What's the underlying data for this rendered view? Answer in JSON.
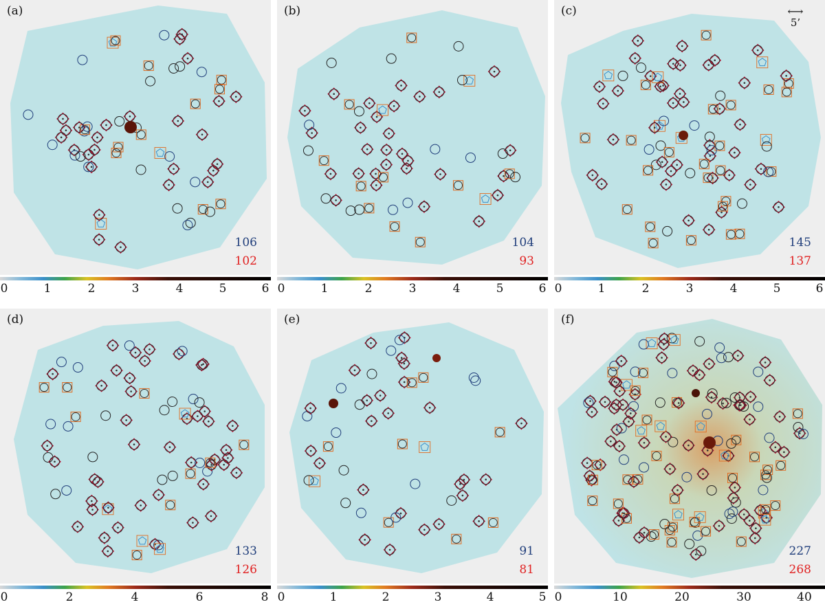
{
  "scale_bar": {
    "label": "5’"
  },
  "panels": [
    {
      "label": "(a)",
      "count_blue": "106",
      "count_red": "102",
      "ticks": [
        "0",
        "1",
        "2",
        "3",
        "4",
        "5",
        "6"
      ]
    },
    {
      "label": "(b)",
      "count_blue": "104",
      "count_red": "93",
      "ticks": [
        "0",
        "1",
        "2",
        "3",
        "4",
        "5",
        "6"
      ]
    },
    {
      "label": "(c)",
      "count_blue": "145",
      "count_red": "137",
      "ticks": [
        "0",
        "1",
        "2",
        "3",
        "4",
        "5",
        "6"
      ]
    },
    {
      "label": "(d)",
      "count_blue": "133",
      "count_red": "126",
      "ticks": [
        "0",
        "2",
        "4",
        "6",
        "8"
      ]
    },
    {
      "label": "(e)",
      "count_blue": "91",
      "count_red": "81",
      "ticks": [
        "0",
        "1",
        "2",
        "3",
        "4",
        "5"
      ]
    },
    {
      "label": "(f)",
      "count_blue": "227",
      "count_red": "268",
      "ticks": [
        "0",
        "10",
        "20",
        "30",
        "40"
      ]
    }
  ],
  "colors": {
    "circle": "#1f3d7a",
    "diamond": "#b01030",
    "square": "#e06a20",
    "pentagon": "#3a8fc9",
    "field": "#bfe3e6"
  }
}
